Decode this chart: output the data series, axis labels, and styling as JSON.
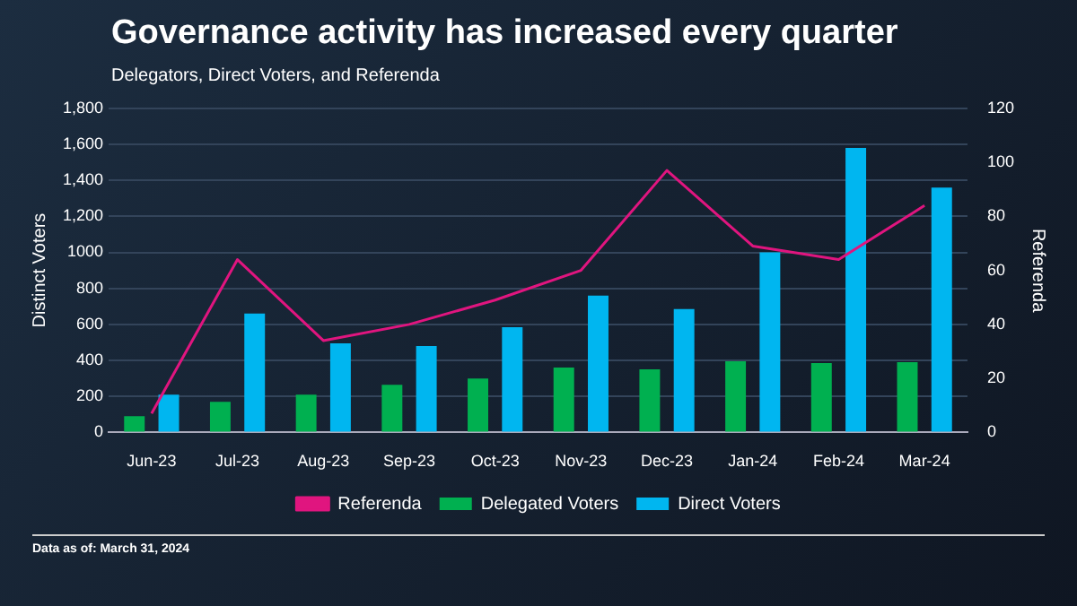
{
  "chart_data": {
    "type": "bar",
    "title": "Governance activity has increased every quarter",
    "subtitle": "Delegators, Direct Voters, and Referenda",
    "ylabel": "Distinct Voters",
    "y2label": "Referenda",
    "categories": [
      "Jun-23",
      "Jul-23",
      "Aug-23",
      "Sep-23",
      "Oct-23",
      "Nov-23",
      "Dec-23",
      "Jan-24",
      "Feb-24",
      "Mar-24"
    ],
    "series": [
      {
        "name": "Delegated Voters",
        "color": "#00b050",
        "values": [
          90,
          170,
          210,
          265,
          300,
          360,
          350,
          395,
          385,
          390
        ]
      },
      {
        "name": "Direct Voters",
        "color": "#00b6f0",
        "values": [
          210,
          660,
          495,
          480,
          585,
          760,
          685,
          1000,
          1580,
          1360
        ]
      },
      {
        "name": "Referenda",
        "type": "line",
        "axis": "y2",
        "color": "#e0157f",
        "values": [
          7,
          64,
          34,
          40,
          49,
          60,
          97,
          69,
          64,
          84
        ]
      }
    ],
    "ylim": [
      0,
      1800
    ],
    "yticks": [
      0,
      200,
      400,
      600,
      800,
      1000,
      {
        "value": 1200,
        "label": "1,200"
      },
      {
        "value": 1400,
        "label": "1,400"
      },
      {
        "value": 1600,
        "label": "1,600"
      },
      {
        "value": 1800,
        "label": "1,800"
      }
    ],
    "y2lim": [
      0,
      120
    ],
    "y2ticks": [
      0,
      20,
      40,
      60,
      80,
      100,
      120
    ],
    "grid": "y",
    "legend": "bottom",
    "marker": "none",
    "annotations": [
      "Data as of: March 31, 2024"
    ]
  }
}
